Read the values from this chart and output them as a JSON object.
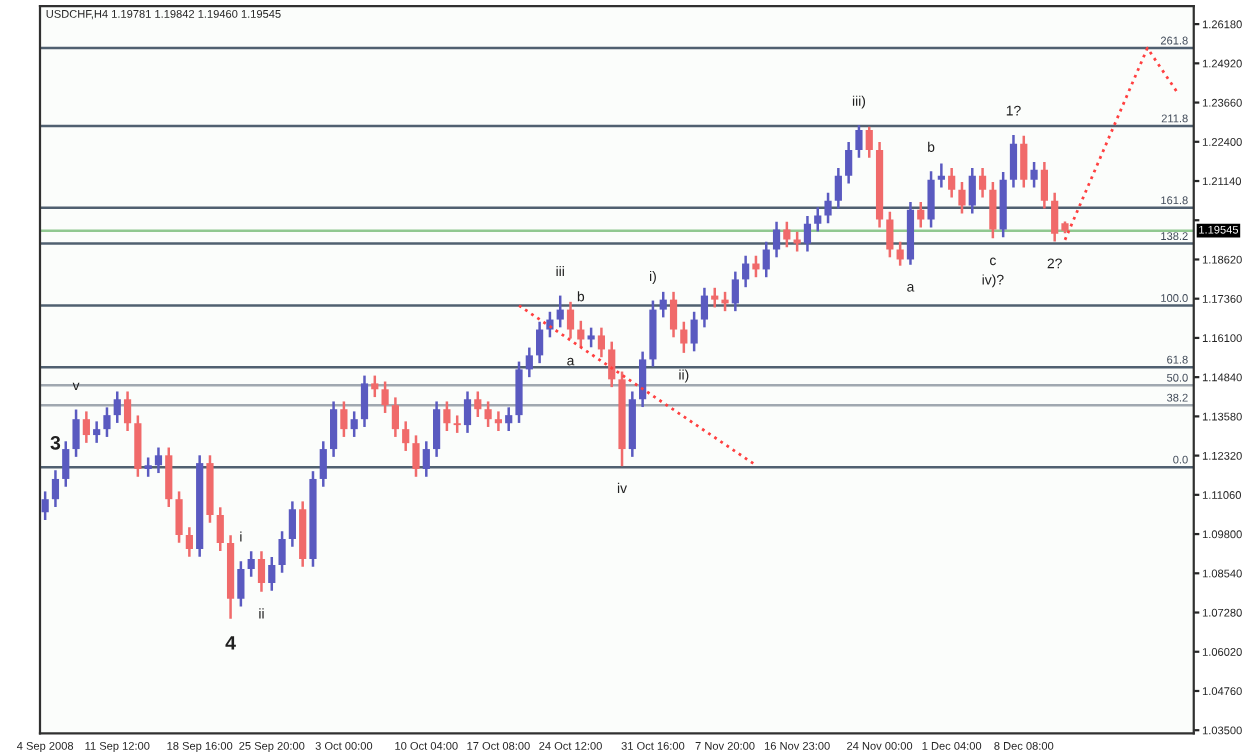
{
  "chart_data": {
    "type": "candlestick",
    "title": "USDCHF,H4 1.19781 1.19842 1.19460 1.19545",
    "categories": [
      "4 Sep 2008",
      null,
      null,
      null,
      null,
      null,
      null,
      "11 Sep 12:00",
      null,
      null,
      null,
      null,
      null,
      null,
      null,
      "18 Sep 16:00",
      null,
      null,
      null,
      null,
      null,
      null,
      "25 Sep 20:00",
      null,
      null,
      null,
      null,
      null,
      null,
      "3 Oct 00:00",
      null,
      null,
      null,
      null,
      null,
      null,
      null,
      "10 Oct 04:00",
      null,
      null,
      null,
      null,
      null,
      null,
      "17 Oct 08:00",
      null,
      null,
      null,
      null,
      null,
      null,
      "24 Oct 12:00",
      null,
      null,
      null,
      null,
      null,
      null,
      null,
      "31 Oct 16:00",
      null,
      null,
      null,
      null,
      null,
      null,
      "7 Nov 20:00",
      null,
      null,
      null,
      null,
      null,
      null,
      "16 Nov 23:00",
      null,
      null,
      null,
      null,
      null,
      null,
      null,
      "24 Nov 00:00",
      null,
      null,
      null,
      null,
      null,
      null,
      "1 Dec 04:00",
      null,
      null,
      null,
      null,
      null,
      null,
      "8 Dec 08:00",
      null,
      null,
      null,
      null,
      null,
      null,
      null,
      null,
      null,
      null,
      null,
      null,
      null,
      null,
      null,
      null
    ],
    "ohlc": [
      [
        1.105,
        1.1117,
        1.1025,
        1.1092
      ],
      [
        1.1092,
        1.1185,
        1.1067,
        1.1157
      ],
      [
        1.1157,
        1.1278,
        1.1132,
        1.1253
      ],
      [
        1.1253,
        1.138,
        1.1228,
        1.1349
      ],
      [
        1.1349,
        1.1374,
        1.1273,
        1.1298
      ],
      [
        1.1298,
        1.1342,
        1.1273,
        1.1317
      ],
      [
        1.1317,
        1.1387,
        1.1292,
        1.1362
      ],
      [
        1.1362,
        1.1438,
        1.1337,
        1.1413
      ],
      [
        1.1413,
        1.1438,
        1.1311,
        1.1336
      ],
      [
        1.1336,
        1.1361,
        1.1164,
        1.1189
      ],
      [
        1.1189,
        1.1226,
        1.1164,
        1.1201
      ],
      [
        1.1201,
        1.1258,
        1.1176,
        1.1233
      ],
      [
        1.1233,
        1.1258,
        1.1067,
        1.1092
      ],
      [
        1.1092,
        1.1117,
        1.0952,
        1.0977
      ],
      [
        1.0977,
        1.1002,
        1.0907,
        1.0932
      ],
      [
        1.0932,
        1.1233,
        1.0907,
        1.1208
      ],
      [
        1.1208,
        1.1233,
        1.1016,
        1.1041
      ],
      [
        1.1041,
        1.1066,
        1.0926,
        1.0951
      ],
      [
        1.0951,
        1.0976,
        1.0708,
        1.0772
      ],
      [
        1.0772,
        1.0893,
        1.0747,
        1.0868
      ],
      [
        1.0868,
        1.0925,
        1.0843,
        1.09
      ],
      [
        1.09,
        1.0925,
        1.0795,
        1.0823
      ],
      [
        1.0823,
        1.0906,
        1.0798,
        1.0881
      ],
      [
        1.0881,
        1.0989,
        1.0856,
        1.0964
      ],
      [
        1.0964,
        1.1085,
        1.0939,
        1.106
      ],
      [
        1.106,
        1.1085,
        1.0875,
        1.09
      ],
      [
        1.09,
        1.1182,
        1.0875,
        1.1157
      ],
      [
        1.1157,
        1.1278,
        1.1132,
        1.1253
      ],
      [
        1.1253,
        1.1406,
        1.1228,
        1.1381
      ],
      [
        1.1381,
        1.1406,
        1.1292,
        1.1317
      ],
      [
        1.1317,
        1.1374,
        1.1292,
        1.1349
      ],
      [
        1.1349,
        1.1489,
        1.1324,
        1.1464
      ],
      [
        1.1464,
        1.1489,
        1.142,
        1.1445
      ],
      [
        1.1445,
        1.147,
        1.1369,
        1.1394
      ],
      [
        1.1394,
        1.1419,
        1.1292,
        1.1317
      ],
      [
        1.1317,
        1.1342,
        1.1247,
        1.1272
      ],
      [
        1.1272,
        1.1297,
        1.1164,
        1.1189
      ],
      [
        1.1189,
        1.1278,
        1.1164,
        1.1253
      ],
      [
        1.1253,
        1.1406,
        1.1228,
        1.1381
      ],
      [
        1.1381,
        1.1406,
        1.1311,
        1.1336
      ],
      [
        1.1336,
        1.1361,
        1.1305,
        1.133
      ],
      [
        1.133,
        1.1438,
        1.1305,
        1.1413
      ],
      [
        1.1413,
        1.1438,
        1.1356,
        1.1381
      ],
      [
        1.1381,
        1.1406,
        1.1324,
        1.1349
      ],
      [
        1.1349,
        1.1374,
        1.1311,
        1.1336
      ],
      [
        1.1336,
        1.1387,
        1.1311,
        1.1362
      ],
      [
        1.1362,
        1.1534,
        1.1337,
        1.1509
      ],
      [
        1.1509,
        1.1579,
        1.1484,
        1.1554
      ],
      [
        1.1554,
        1.1662,
        1.1529,
        1.1637
      ],
      [
        1.1637,
        1.1694,
        1.1612,
        1.1669
      ],
      [
        1.1669,
        1.1746,
        1.1644,
        1.1701
      ],
      [
        1.1701,
        1.1726,
        1.1608,
        1.1637
      ],
      [
        1.1637,
        1.1665,
        1.158,
        1.1605
      ],
      [
        1.1605,
        1.1643,
        1.158,
        1.1618
      ],
      [
        1.1618,
        1.1643,
        1.1548,
        1.1573
      ],
      [
        1.1573,
        1.1598,
        1.1452,
        1.1477
      ],
      [
        1.1477,
        1.1502,
        1.1198,
        1.1253
      ],
      [
        1.1253,
        1.1438,
        1.1228,
        1.1413
      ],
      [
        1.1413,
        1.1566,
        1.1388,
        1.1541
      ],
      [
        1.1541,
        1.173,
        1.1518,
        1.1701
      ],
      [
        1.1701,
        1.1758,
        1.1676,
        1.1733
      ],
      [
        1.1733,
        1.1758,
        1.1612,
        1.1637
      ],
      [
        1.1637,
        1.1662,
        1.1562,
        1.1592
      ],
      [
        1.1592,
        1.1694,
        1.1567,
        1.1669
      ],
      [
        1.1669,
        1.1771,
        1.1644,
        1.1746
      ],
      [
        1.1746,
        1.1771,
        1.1708,
        1.1733
      ],
      [
        1.1733,
        1.1758,
        1.1696,
        1.1721
      ],
      [
        1.1721,
        1.1823,
        1.1696,
        1.1798
      ],
      [
        1.1798,
        1.1874,
        1.1773,
        1.1849
      ],
      [
        1.1849,
        1.1874,
        1.1805,
        1.183
      ],
      [
        1.183,
        1.1919,
        1.1805,
        1.1894
      ],
      [
        1.1894,
        1.1983,
        1.1869,
        1.1958
      ],
      [
        1.1958,
        1.1983,
        1.1901,
        1.1926
      ],
      [
        1.1926,
        1.1951,
        1.1888,
        1.1913
      ],
      [
        1.1913,
        1.2002,
        1.1888,
        1.1977
      ],
      [
        1.1977,
        1.203,
        1.1952,
        1.2003
      ],
      [
        1.2003,
        1.2076,
        1.1978,
        1.2051
      ],
      [
        1.2051,
        1.2156,
        1.2026,
        1.2131
      ],
      [
        1.2131,
        1.2239,
        1.2106,
        1.2214
      ],
      [
        1.2214,
        1.2293,
        1.2189,
        1.2278
      ],
      [
        1.2278,
        1.2288,
        1.2189,
        1.2214
      ],
      [
        1.2214,
        1.2239,
        1.1965,
        1.199
      ],
      [
        1.199,
        1.2015,
        1.1869,
        1.1894
      ],
      [
        1.1894,
        1.1919,
        1.1842,
        1.1862
      ],
      [
        1.1862,
        1.2047,
        1.1845,
        1.2022
      ],
      [
        1.2022,
        1.2047,
        1.1965,
        1.199
      ],
      [
        1.199,
        1.2145,
        1.1965,
        1.2118
      ],
      [
        1.2118,
        1.217,
        1.2093,
        1.2131
      ],
      [
        1.2131,
        1.2156,
        1.2061,
        1.2086
      ],
      [
        1.2086,
        1.2111,
        1.201,
        1.2035
      ],
      [
        1.2035,
        1.2156,
        1.201,
        1.2131
      ],
      [
        1.2131,
        1.2156,
        1.2061,
        1.2086
      ],
      [
        1.2086,
        1.2111,
        1.193,
        1.1958
      ],
      [
        1.1958,
        1.2143,
        1.1933,
        1.2118
      ],
      [
        1.2118,
        1.2262,
        1.2093,
        1.2234
      ],
      [
        1.2234,
        1.2259,
        1.2093,
        1.2118
      ],
      [
        1.2118,
        1.2175,
        1.2093,
        1.215
      ],
      [
        1.215,
        1.2175,
        1.2026,
        1.2051
      ],
      [
        1.2051,
        1.2076,
        1.192,
        1.1945
      ],
      [
        1.19781,
        1.19842,
        1.1946,
        1.19545
      ],
      null,
      null,
      null,
      null,
      null,
      null,
      null,
      null,
      null,
      null,
      null,
      null
    ],
    "series": [
      {
        "type": "line",
        "color": "#ff4040",
        "line_style": "dotted",
        "values": [
          null,
          null,
          null,
          null,
          null,
          null,
          null,
          null,
          null,
          null,
          null,
          null,
          null,
          null,
          null,
          null,
          null,
          null,
          null,
          null,
          null,
          null,
          null,
          null,
          null,
          null,
          null,
          null,
          null,
          null,
          null,
          null,
          null,
          null,
          null,
          null,
          null,
          null,
          null,
          null,
          null,
          null,
          null,
          null,
          null,
          null,
          1.1714,
          null,
          null,
          null,
          null,
          null,
          null,
          null,
          null,
          null,
          null,
          null,
          null,
          null,
          null,
          null,
          null,
          null,
          null,
          null,
          null,
          null,
          null,
          1.1201,
          null,
          null,
          null,
          null,
          null,
          null,
          null,
          null,
          null,
          null,
          null,
          null,
          null,
          null,
          null,
          null,
          null,
          null,
          null,
          null,
          null,
          null,
          null,
          null,
          null,
          null,
          null,
          null,
          null,
          null,
          null,
          null,
          null,
          null,
          null,
          null,
          null,
          null,
          null,
          null,
          null,
          null
        ]
      },
      {
        "type": "line",
        "color": "#ff4040",
        "line_style": "dotted",
        "values": [
          null,
          null,
          null,
          null,
          null,
          null,
          null,
          null,
          null,
          null,
          null,
          null,
          null,
          null,
          null,
          null,
          null,
          null,
          null,
          null,
          null,
          null,
          null,
          null,
          null,
          null,
          null,
          null,
          null,
          null,
          null,
          null,
          null,
          null,
          null,
          null,
          null,
          null,
          null,
          null,
          null,
          null,
          null,
          null,
          null,
          null,
          null,
          null,
          null,
          null,
          null,
          null,
          null,
          null,
          null,
          null,
          null,
          null,
          null,
          null,
          null,
          null,
          null,
          null,
          null,
          null,
          null,
          null,
          null,
          null,
          null,
          null,
          null,
          null,
          null,
          null,
          null,
          null,
          null,
          null,
          null,
          null,
          null,
          null,
          null,
          null,
          null,
          null,
          null,
          null,
          null,
          null,
          null,
          null,
          null,
          null,
          null,
          null,
          null,
          1.1925,
          null,
          null,
          null,
          null,
          null,
          null,
          null,
          1.2541,
          null,
          null,
          1.2394,
          null
        ]
      }
    ],
    "ylim": [
      1.034,
      1.2676
    ],
    "yticks": [
      {
        "value": 1.2618,
        "label": "1.26180"
      },
      {
        "value": 1.2492,
        "label": "1.24920"
      },
      {
        "value": 1.2366,
        "label": "1.23660"
      },
      {
        "value": 1.224,
        "label": "1.22400"
      },
      {
        "value": 1.2114,
        "label": "1.21140"
      },
      {
        "value": 1.1988,
        "label": null
      },
      {
        "value": 1.1862,
        "label": "1.18620"
      },
      {
        "value": 1.1736,
        "label": "1.17360"
      },
      {
        "value": 1.161,
        "label": "1.16100"
      },
      {
        "value": 1.1484,
        "label": "1.14840"
      },
      {
        "value": 1.1358,
        "label": "1.13580"
      },
      {
        "value": 1.1232,
        "label": "1.12320"
      },
      {
        "value": 1.1106,
        "label": "1.11060"
      },
      {
        "value": 1.098,
        "label": "1.09800"
      },
      {
        "value": 1.0854,
        "label": "1.08540"
      },
      {
        "value": 1.0728,
        "label": "1.07280"
      },
      {
        "value": 1.0602,
        "label": "1.06020"
      },
      {
        "value": 1.0476,
        "label": "1.04760"
      },
      {
        "value": 1.035,
        "label": "1.03500"
      }
    ],
    "ref_lines": [
      {
        "axis": "y",
        "value": 1.2541,
        "color": "#506070"
      },
      {
        "axis": "y",
        "value": 1.2291,
        "color": "#506070"
      },
      {
        "axis": "y",
        "value": 1.2028,
        "color": "#506070"
      },
      {
        "axis": "y",
        "value": 1.1913,
        "color": "#506070"
      },
      {
        "axis": "y",
        "value": 1.1714,
        "color": "#506070"
      },
      {
        "axis": "y",
        "value": 1.1516,
        "color": "#506070"
      },
      {
        "axis": "y",
        "value": 1.1458,
        "color": "#a0a8b0"
      },
      {
        "axis": "y",
        "value": 1.1394,
        "color": "#a0a8b0"
      },
      {
        "axis": "y",
        "value": 1.1195,
        "color": "#506070"
      },
      {
        "axis": "y",
        "value": 1.19545,
        "label": "1.19545",
        "color": "#90c890"
      }
    ],
    "annotations": [
      {
        "text": "3",
        "y": 1.1185
      },
      {
        "text": "v",
        "y": 1.138
      },
      {
        "text": "4",
        "y": 1.0708
      },
      {
        "text": "i",
        "y": 1.0893
      },
      {
        "text": "ii",
        "y": 1.0795
      },
      {
        "text": "iii",
        "y": 1.1746
      },
      {
        "text": "b",
        "y": 1.1665
      },
      {
        "text": "a",
        "y": 1.1608
      },
      {
        "text": "iv",
        "y": 1.1198
      },
      {
        "text": "i)",
        "y": 1.173
      },
      {
        "text": "ii)",
        "y": 1.1562
      },
      {
        "text": "iii)",
        "y": 1.2293
      },
      {
        "text": "a",
        "y": 1.1845
      },
      {
        "text": "b",
        "y": 1.2145
      },
      {
        "text": "c",
        "y": 1.193
      },
      {
        "text": "iv)?",
        "y": 1.193
      },
      {
        "text": "1?",
        "y": 1.2262
      },
      {
        "text": "2?",
        "y": 1.192
      },
      {
        "text": "261.8",
        "y": 1.2541
      },
      {
        "text": "211.8",
        "y": 1.2291
      },
      {
        "text": "161.8",
        "y": 1.2028
      },
      {
        "text": "138.2",
        "y": 1.1913
      },
      {
        "text": "100.0",
        "y": 1.1714
      },
      {
        "text": "61.8",
        "y": 1.1516
      },
      {
        "text": "50.0",
        "y": 1.1458
      },
      {
        "text": "38.2",
        "y": 1.1394
      },
      {
        "text": "0.0",
        "y": 1.1195
      }
    ]
  }
}
